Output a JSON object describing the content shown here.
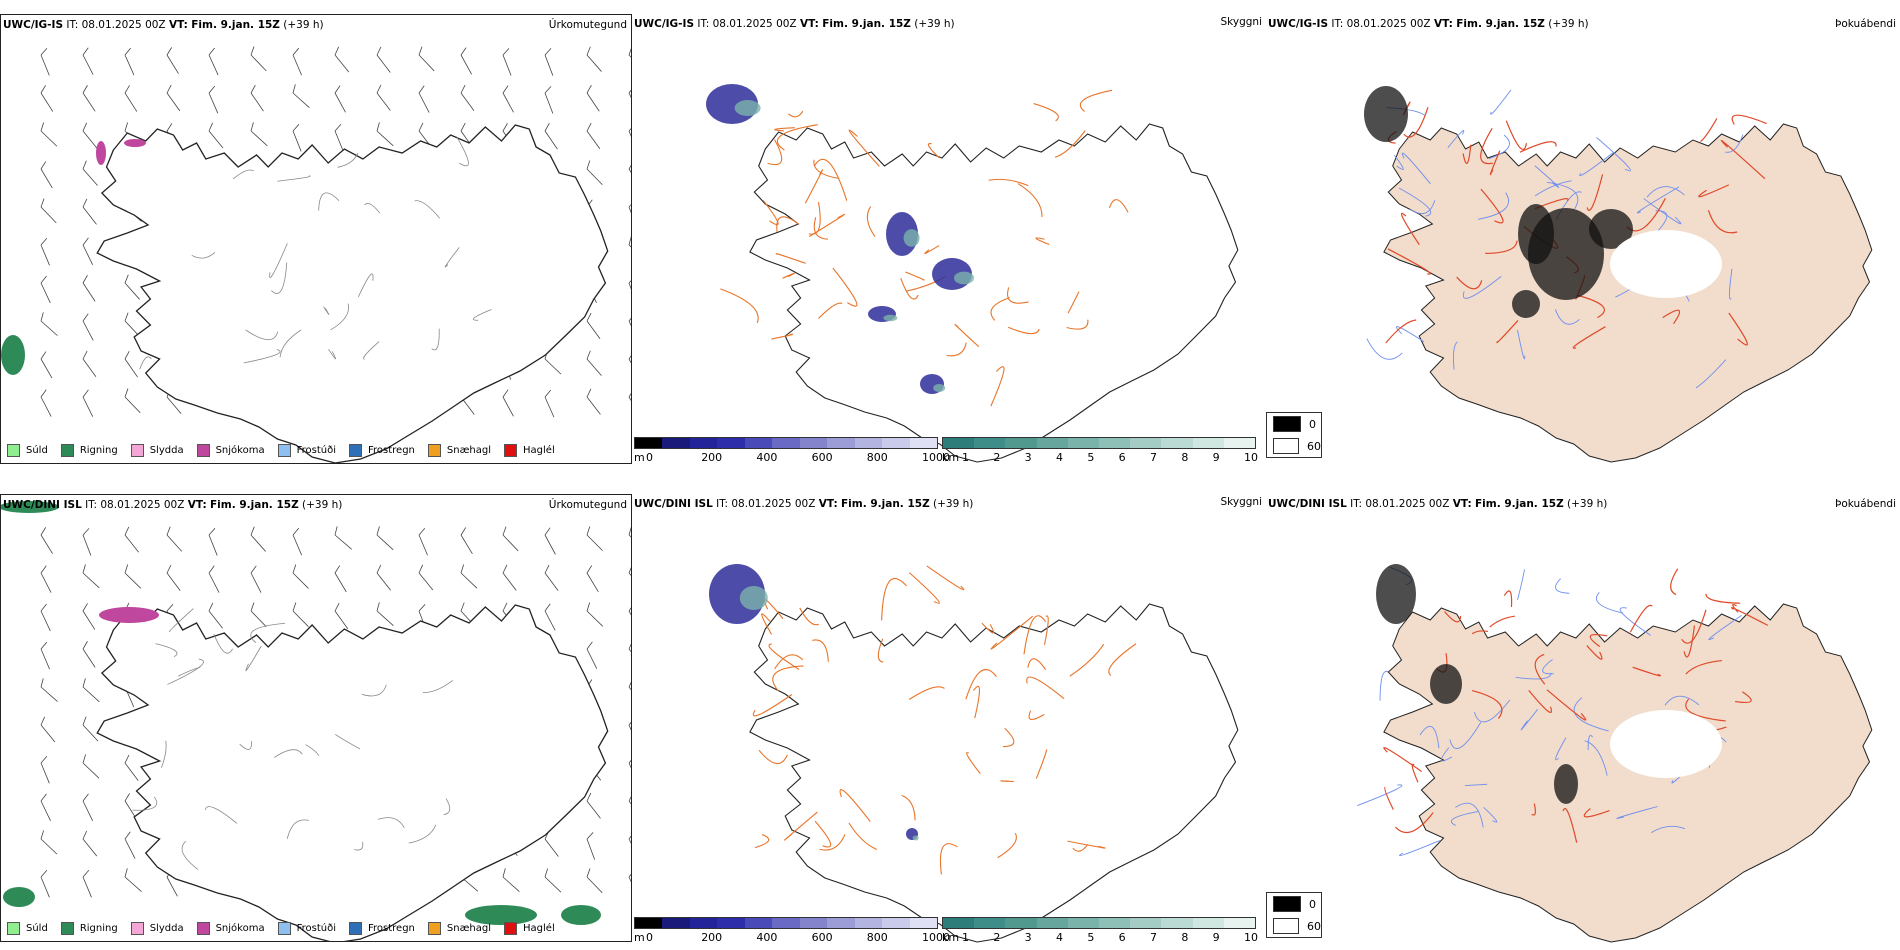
{
  "rows": [
    {
      "model": "UWC/IG-IS",
      "it_label": "IT:",
      "it_value": "08.01.2025 00Z",
      "vt_label": "VT:",
      "vt_value": "Fim. 9.jan. 15Z",
      "lead": "(+39 h)"
    },
    {
      "model": "UWC/DINI ISL",
      "it_label": "IT:",
      "it_value": "08.01.2025 00Z",
      "vt_label": "VT:",
      "vt_value": "Fim. 9.jan. 15Z",
      "lead": "(+39 h)"
    }
  ],
  "panel_types": {
    "precip_type": "Úrkomutegund",
    "visibility": "Skyggni",
    "cloud": "Þokuábendi"
  },
  "precip_legend": [
    {
      "label": "Súld",
      "color": "#90ee90"
    },
    {
      "label": "Rigning",
      "color": "#2e8b57"
    },
    {
      "label": "Slydda",
      "color": "#f4a6d7"
    },
    {
      "label": "Snjókoma",
      "color": "#c0479e"
    },
    {
      "label": "Frostúði",
      "color": "#8fbfef"
    },
    {
      "label": "Frostregn",
      "color": "#2f6fb8"
    },
    {
      "label": "Snæhagl",
      "color": "#f0a020"
    },
    {
      "label": "Haglél",
      "color": "#e01010"
    }
  ],
  "height_bar": {
    "unit": "m",
    "ticks": [
      "0",
      "200",
      "400",
      "600",
      "800",
      "1000"
    ],
    "colors": [
      "#000000",
      "#1a1a7a",
      "#24249a",
      "#2e2eaa",
      "#4a4ab8",
      "#6a6ac4",
      "#8484cc",
      "#9c9cd6",
      "#b4b4e0",
      "#cacaea",
      "#e0e0f4"
    ]
  },
  "vis_bar": {
    "unit": "km",
    "ticks": [
      "1",
      "2",
      "3",
      "4",
      "5",
      "6",
      "7",
      "8",
      "9",
      "10"
    ],
    "colors": [
      "#2e7d7a",
      "#3f8d89",
      "#51998f",
      "#66a69d",
      "#7ab3aa",
      "#8fc0b8",
      "#a4ccc5",
      "#badad3",
      "#d0e7e1",
      "#e8f3f0"
    ]
  },
  "cloud_legend": [
    {
      "label": "0",
      "color": "#000000"
    },
    {
      "label": "60",
      "color": "#ffffff"
    }
  ],
  "colors": {
    "land_fill": "#f2dccb",
    "road": "#e8752a",
    "road_red": "#e04a2a",
    "river": "#6f8ff0",
    "outline": "#222222"
  }
}
